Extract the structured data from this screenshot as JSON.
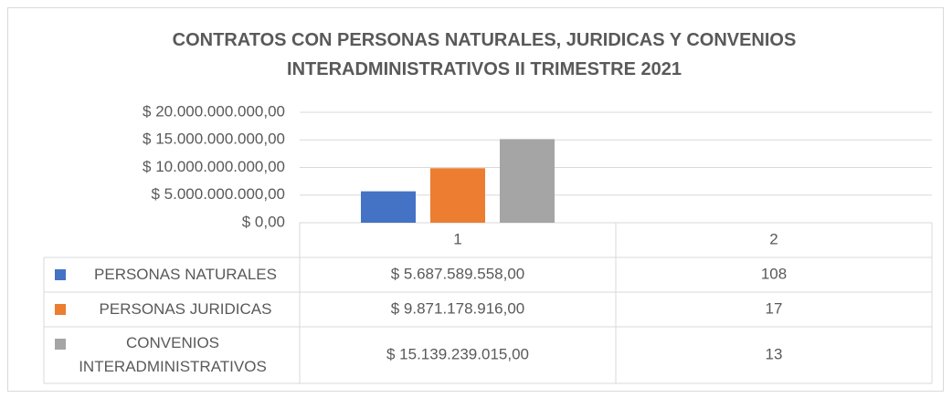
{
  "chart_data": {
    "type": "bar",
    "title": "CONTRATOS CON PERSONAS NATURALES, JURIDICAS Y CONVENIOS INTERADMINISTRATIVOS II TRIMESTRE 2021",
    "categories": [
      "1",
      "2"
    ],
    "series": [
      {
        "name": "PERSONAS NATURALES",
        "color": "#4472c4",
        "values": [
          5687589558,
          108
        ],
        "value_labels": [
          "$ 5.687.589.558,00",
          "108"
        ]
      },
      {
        "name": "PERSONAS JURIDICAS",
        "color": "#ed7d31",
        "values": [
          9871178916,
          17
        ],
        "value_labels": [
          "$ 9.871.178.916,00",
          "17"
        ]
      },
      {
        "name": "CONVENIOS INTERADMINISTRATIVOS",
        "color": "#a5a5a5",
        "values": [
          15139239015,
          13
        ],
        "value_labels": [
          "$ 15.139.239.015,00",
          "13"
        ]
      }
    ],
    "ylim": [
      0,
      20000000000
    ],
    "yticks": [
      {
        "value": 0,
        "label": "$ 0,00"
      },
      {
        "value": 5000000000,
        "label": "$ 5.000.000.000,00"
      },
      {
        "value": 10000000000,
        "label": "$ 10.000.000.000,00"
      },
      {
        "value": 15000000000,
        "label": "$ 15.000.000.000,00"
      },
      {
        "value": 20000000000,
        "label": "$ 20.000.000.000,00"
      }
    ],
    "grid": true
  }
}
